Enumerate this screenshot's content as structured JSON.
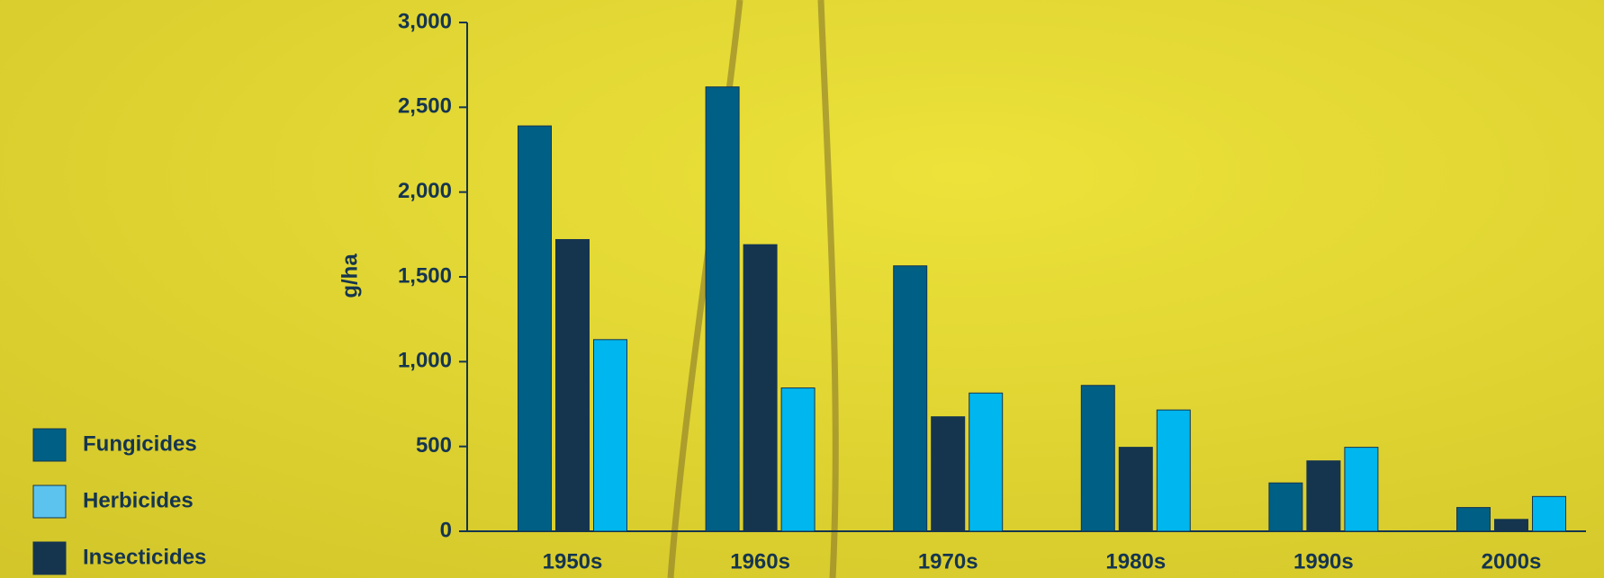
{
  "chart_data": {
    "type": "bar",
    "y_label": "g/ha",
    "categories": [
      "1950s",
      "1960s",
      "1970s",
      "1980s",
      "1990s",
      "2000s"
    ],
    "series": [
      {
        "name": "Fungicides",
        "color": "#005f85",
        "values": [
          2390,
          2620,
          1565,
          860,
          285,
          140
        ]
      },
      {
        "name": "Insecticides",
        "color": "#15354f",
        "values": [
          1720,
          1690,
          675,
          495,
          415,
          70
        ]
      },
      {
        "name": "Herbicides",
        "color": "#00b6ee",
        "values": [
          1130,
          845,
          815,
          715,
          495,
          205
        ]
      }
    ],
    "ylim": [
      0,
      3000
    ],
    "yticks": [
      0,
      500,
      {
        "value": 1000,
        "label": "1,000"
      },
      {
        "value": 1500,
        "label": "1,500"
      },
      {
        "value": 2000,
        "label": "2,000"
      },
      {
        "value": 2500,
        "label": "2,500"
      },
      {
        "value": 3000,
        "label": "3,000"
      }
    ],
    "legend": "bottom-left"
  }
}
